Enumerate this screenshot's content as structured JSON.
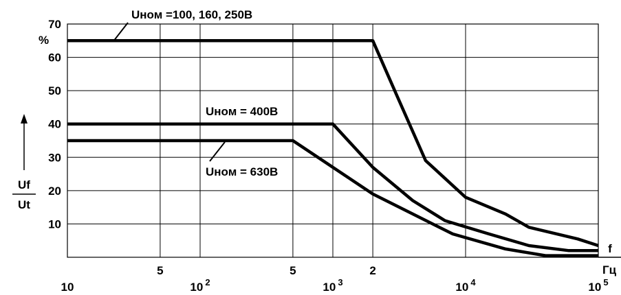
{
  "chart_data": {
    "type": "line",
    "x_scale": "log",
    "xlim": [
      10,
      100000
    ],
    "ylim": [
      0,
      70
    ],
    "yticks": [
      10,
      20,
      30,
      40,
      50,
      60,
      70
    ],
    "x_ticks": [
      {
        "label": "10",
        "value": 10,
        "major": true
      },
      {
        "label": "5",
        "value": 50,
        "major": false
      },
      {
        "label": "10",
        "sup": "2",
        "value": 100,
        "major": true
      },
      {
        "label": "5",
        "value": 500,
        "major": false
      },
      {
        "label": "10",
        "sup": "3",
        "value": 1000,
        "major": true
      },
      {
        "label": "2",
        "value": 2000,
        "major": false
      },
      {
        "label": "10",
        "sup": "4",
        "value": 10000,
        "major": true
      },
      {
        "label": "10",
        "sup": "5",
        "value": 100000,
        "major": true
      }
    ],
    "x_gridlines": [
      50,
      100,
      500,
      1000,
      2000,
      10000
    ],
    "y_unit": "%",
    "ylabel_num": "Uf",
    "ylabel_den": "Ut",
    "xlabel_num": "f",
    "xlabel_den": "Гц",
    "series": [
      {
        "name": "Uном =100,  160,  250В",
        "points": [
          [
            10,
            65
          ],
          [
            2000,
            65
          ],
          [
            3000,
            49
          ],
          [
            5000,
            29
          ],
          [
            10000,
            18
          ],
          [
            20000,
            13
          ],
          [
            30000,
            9
          ],
          [
            70000,
            5.5
          ],
          [
            100000,
            3.5
          ]
        ]
      },
      {
        "name": "Uном = 400В",
        "points": [
          [
            10,
            40
          ],
          [
            1000,
            40
          ],
          [
            2000,
            27
          ],
          [
            4000,
            17
          ],
          [
            7000,
            11
          ],
          [
            15000,
            7
          ],
          [
            30000,
            3.5
          ],
          [
            60000,
            2
          ],
          [
            100000,
            2
          ]
        ]
      },
      {
        "name": "Uном = 630В",
        "points": [
          [
            10,
            35
          ],
          [
            500,
            35
          ],
          [
            1000,
            27
          ],
          [
            2000,
            19
          ],
          [
            4000,
            13
          ],
          [
            8000,
            7
          ],
          [
            20000,
            2.5
          ],
          [
            40000,
            0.5
          ],
          [
            100000,
            0.5
          ]
        ]
      }
    ]
  }
}
